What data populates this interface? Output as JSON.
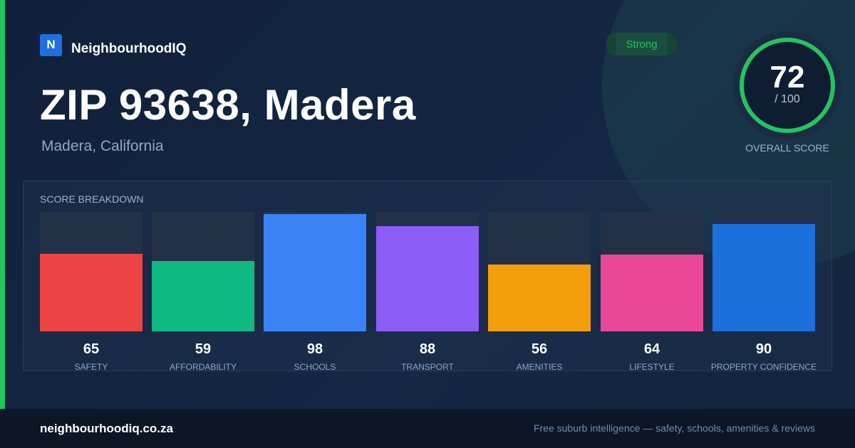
{
  "brand": {
    "logo_letter": "N",
    "name": "NeighbourhoodIQ",
    "logo_color": "#1f6fe0"
  },
  "location": {
    "title": "ZIP 93638, Madera",
    "subtitle": "Madera, California"
  },
  "rating": {
    "badge": "Strong",
    "badge_color": "#22c55e"
  },
  "overall": {
    "score": 72,
    "score_text": "72",
    "max_text": "/ 100",
    "label": "OVERALL SCORE",
    "ring_color": "#22c55e"
  },
  "breakdown": {
    "title": "SCORE BREAKDOWN",
    "items": [
      {
        "label": "SAFETY",
        "value": 65,
        "value_text": "65",
        "color": "#ef4444"
      },
      {
        "label": "AFFORDABILITY",
        "value": 59,
        "value_text": "59",
        "color": "#10b981"
      },
      {
        "label": "SCHOOLS",
        "value": 98,
        "value_text": "98",
        "color": "#3b82f6"
      },
      {
        "label": "TRANSPORT",
        "value": 88,
        "value_text": "88",
        "color": "#8b5cf6"
      },
      {
        "label": "AMENITIES",
        "value": 56,
        "value_text": "56",
        "color": "#f59e0b"
      },
      {
        "label": "LIFESTYLE",
        "value": 64,
        "value_text": "64",
        "color": "#ec4899"
      },
      {
        "label": "PROPERTY CONFIDENCE",
        "value": 90,
        "value_text": "90",
        "color": "#1d6fdc"
      }
    ]
  },
  "footer": {
    "site": "neighbourhoodiq.co.za",
    "tagline": "Free suburb intelligence — safety, schools, amenities & reviews"
  }
}
